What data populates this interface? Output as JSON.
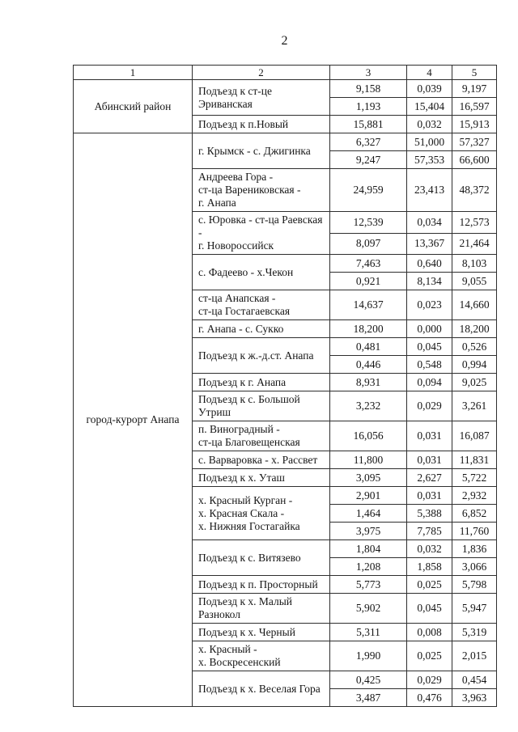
{
  "page": {
    "number": "2"
  },
  "table": {
    "headers": [
      "1",
      "2",
      "3",
      "4",
      "5"
    ],
    "groups": [
      {
        "district": "Абинский район",
        "roads": [
          {
            "name": "Подъезд к ст-це\nЭриванская",
            "rows": [
              [
                "9,158",
                "0,039",
                "9,197"
              ],
              [
                "1,193",
                "15,404",
                "16,597"
              ]
            ]
          },
          {
            "name": "Подъезд к п.Новый",
            "rows": [
              [
                "15,881",
                "0,032",
                "15,913"
              ]
            ]
          }
        ]
      },
      {
        "district": "город-курорт Анапа",
        "roads": [
          {
            "name": "г. Крымск - с. Джигинка",
            "rows": [
              [
                "6,327",
                "51,000",
                "57,327"
              ],
              [
                "9,247",
                "57,353",
                "66,600"
              ]
            ]
          },
          {
            "name": "Андреева Гора -\nст-ца Варениковская -\nг. Анапа",
            "rows": [
              [
                "24,959",
                "23,413",
                "48,372"
              ]
            ]
          },
          {
            "name": "с. Юровка - ст-ца Раевская -\nг. Новороссийск",
            "rows": [
              [
                "12,539",
                "0,034",
                "12,573"
              ],
              [
                "8,097",
                "13,367",
                "21,464"
              ]
            ]
          },
          {
            "name": "с. Фадеево - х.Чекон",
            "rows": [
              [
                "7,463",
                "0,640",
                "8,103"
              ],
              [
                "0,921",
                "8,134",
                "9,055"
              ]
            ]
          },
          {
            "name": "ст-ца Анапская -\nст-ца Гостагаевская",
            "rows": [
              [
                "14,637",
                "0,023",
                "14,660"
              ]
            ]
          },
          {
            "name": "г. Анапа - с. Сукко",
            "rows": [
              [
                "18,200",
                "0,000",
                "18,200"
              ]
            ]
          },
          {
            "name": "Подъезд к ж.-д.ст. Анапа",
            "rows": [
              [
                "0,481",
                "0,045",
                "0,526"
              ],
              [
                "0,446",
                "0,548",
                "0,994"
              ]
            ]
          },
          {
            "name": "Подъезд к г. Анапа",
            "rows": [
              [
                "8,931",
                "0,094",
                "9,025"
              ]
            ]
          },
          {
            "name": "Подъезд к с. Большой\nУтриш",
            "rows": [
              [
                "3,232",
                "0,029",
                "3,261"
              ]
            ]
          },
          {
            "name": "п. Виноградный -\nст-ца Благовещенская",
            "rows": [
              [
                "16,056",
                "0,031",
                "16,087"
              ]
            ]
          },
          {
            "name": "с. Варваровка - х. Рассвет",
            "rows": [
              [
                "11,800",
                "0,031",
                "11,831"
              ]
            ]
          },
          {
            "name": "Подъезд к х. Уташ",
            "rows": [
              [
                "3,095",
                "2,627",
                "5,722"
              ]
            ]
          },
          {
            "name": "х. Красный Курган -\nх. Красная Скала -\nх. Нижняя Гостагайка",
            "rows": [
              [
                "2,901",
                "0,031",
                "2,932"
              ],
              [
                "1,464",
                "5,388",
                "6,852"
              ],
              [
                "3,975",
                "7,785",
                "11,760"
              ]
            ]
          },
          {
            "name": "Подъезд к с. Витязево",
            "rows": [
              [
                "1,804",
                "0,032",
                "1,836"
              ],
              [
                "1,208",
                "1,858",
                "3,066"
              ]
            ]
          },
          {
            "name": "Подъезд к п. Просторный",
            "rows": [
              [
                "5,773",
                "0,025",
                "5,798"
              ]
            ]
          },
          {
            "name": "Подъезд к х. Малый\nРазнокол",
            "rows": [
              [
                "5,902",
                "0,045",
                "5,947"
              ]
            ]
          },
          {
            "name": "Подъезд к х. Черный",
            "rows": [
              [
                "5,311",
                "0,008",
                "5,319"
              ]
            ]
          },
          {
            "name": "х. Красный -\nх. Воскресенский",
            "rows": [
              [
                "1,990",
                "0,025",
                "2,015"
              ]
            ]
          },
          {
            "name": "Подъезд к х. Веселая Гора",
            "rows": [
              [
                "0,425",
                "0,029",
                "0,454"
              ],
              [
                "3,487",
                "0,476",
                "3,963"
              ]
            ]
          }
        ]
      }
    ]
  }
}
